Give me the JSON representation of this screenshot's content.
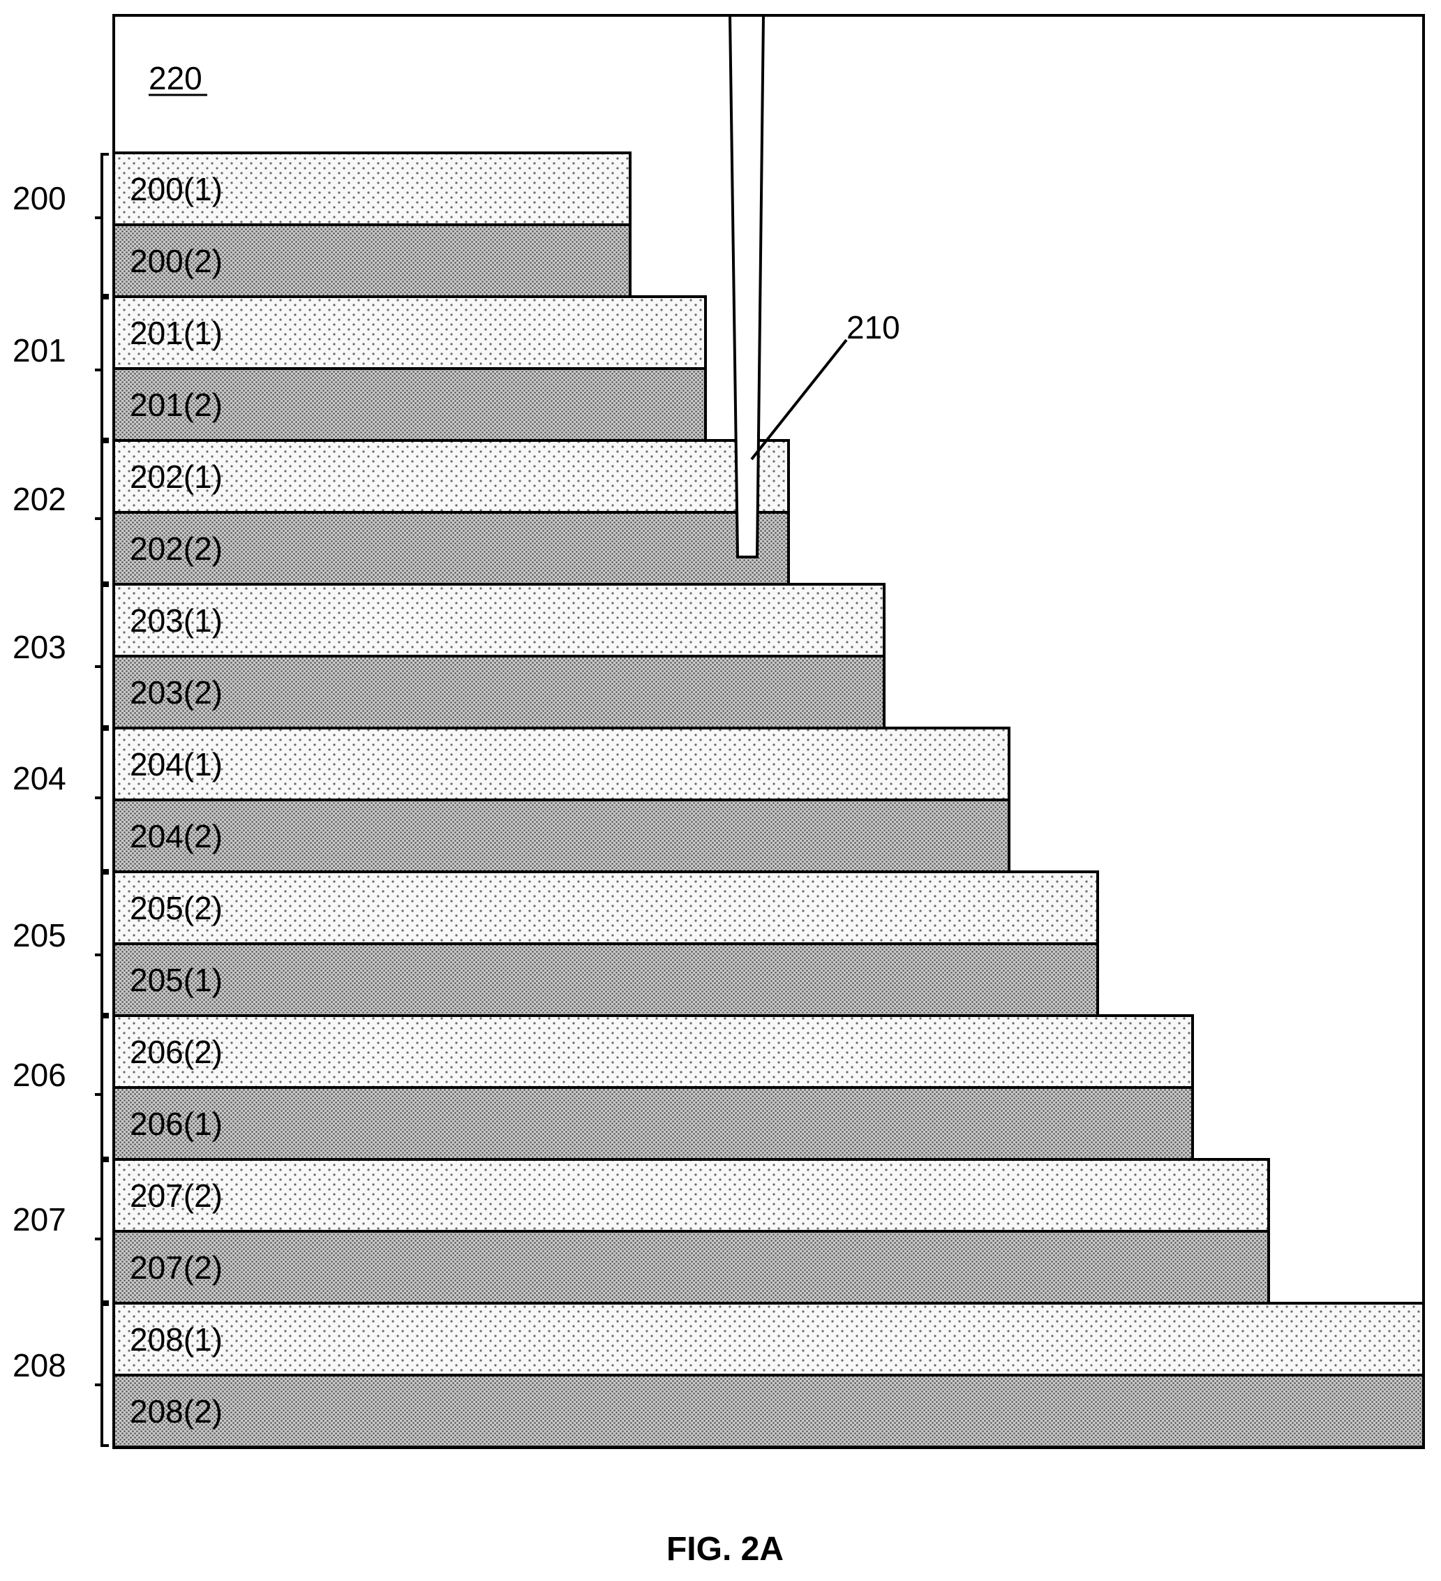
{
  "figure_caption": "FIG. 2A",
  "region_label": "220",
  "contact_label": "210",
  "tiers": [
    {
      "label": "200",
      "layers": [
        "200(1)",
        "200(2)"
      ]
    },
    {
      "label": "201",
      "layers": [
        "201(1)",
        "201(2)"
      ]
    },
    {
      "label": "202",
      "layers": [
        "202(1)",
        "202(2)"
      ]
    },
    {
      "label": "203",
      "layers": [
        "203(1)",
        "203(2)"
      ]
    },
    {
      "label": "204",
      "layers": [
        "204(1)",
        "204(2)"
      ]
    },
    {
      "label": "205",
      "layers": [
        "205(2)",
        "205(1)"
      ]
    },
    {
      "label": "206",
      "layers": [
        "206(2)",
        "206(1)"
      ]
    },
    {
      "label": "207",
      "layers": [
        "207(2)",
        "207(2)"
      ]
    },
    {
      "label": "208",
      "layers": [
        "208(1)",
        "208(2)"
      ]
    }
  ],
  "colors": {
    "light_layer_fill": "#f6f6f6",
    "dark_layer_fill": "#bdbdbd",
    "outline": "#000000"
  }
}
